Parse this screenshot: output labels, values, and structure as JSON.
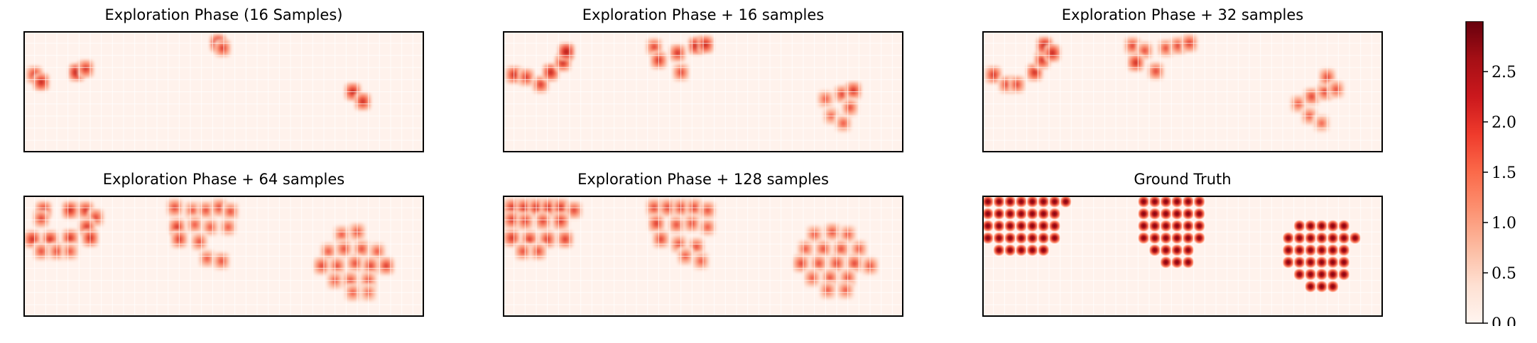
{
  "colormap": {
    "name": "Reds",
    "stops": [
      "#fff5f0",
      "#fee0d2",
      "#fcbba1",
      "#fc9272",
      "#fb6a4a",
      "#ef3b2c",
      "#cb181d",
      "#a50f15",
      "#67000d"
    ],
    "grid_color": "#ffffff",
    "frame_color": "#000000"
  },
  "colorbar": {
    "range": [
      0,
      3
    ],
    "ticks": [
      0.0,
      0.5,
      1.0,
      1.5,
      2.0,
      2.5
    ],
    "tick_labels": [
      "0.0",
      "0.5",
      "1.0",
      "1.5",
      "2.0",
      "2.5"
    ]
  },
  "chart_data": [
    {
      "type": "heatmap",
      "title": "Exploration Phase (16 Samples)",
      "grid": [
        36,
        10
      ],
      "background_value": 0.05,
      "blobs": [
        {
          "x": 1.0,
          "y": 3.6,
          "v": 1.4
        },
        {
          "x": 1.6,
          "y": 4.2,
          "v": 1.6
        },
        {
          "x": 4.8,
          "y": 3.4,
          "v": 1.8
        },
        {
          "x": 5.6,
          "y": 3.1,
          "v": 1.4
        },
        {
          "x": 17.5,
          "y": 1.0,
          "v": 1.8
        },
        {
          "x": 17.9,
          "y": 1.4,
          "v": 1.3
        },
        {
          "x": 29.6,
          "y": 5.0,
          "v": 1.6
        },
        {
          "x": 30.5,
          "y": 5.8,
          "v": 1.5
        }
      ]
    },
    {
      "type": "heatmap",
      "title": "Exploration Phase + 16 samples",
      "grid": [
        36,
        10
      ],
      "background_value": 0.05,
      "blobs": [
        {
          "x": 1.0,
          "y": 3.6,
          "v": 1.5
        },
        {
          "x": 2.1,
          "y": 3.8,
          "v": 1.3
        },
        {
          "x": 3.4,
          "y": 4.4,
          "v": 1.3
        },
        {
          "x": 4.3,
          "y": 3.4,
          "v": 1.6
        },
        {
          "x": 5.4,
          "y": 2.6,
          "v": 1.5
        },
        {
          "x": 5.7,
          "y": 1.7,
          "v": 1.8
        },
        {
          "x": 13.6,
          "y": 1.3,
          "v": 1.2
        },
        {
          "x": 14.0,
          "y": 2.4,
          "v": 1.4
        },
        {
          "x": 15.7,
          "y": 1.8,
          "v": 1.4
        },
        {
          "x": 16.0,
          "y": 3.4,
          "v": 1.2
        },
        {
          "x": 17.4,
          "y": 1.2,
          "v": 1.7
        },
        {
          "x": 18.2,
          "y": 1.1,
          "v": 1.6
        },
        {
          "x": 29.0,
          "y": 5.6,
          "v": 1.0
        },
        {
          "x": 30.5,
          "y": 5.2,
          "v": 1.2
        },
        {
          "x": 31.5,
          "y": 4.9,
          "v": 1.4
        },
        {
          "x": 29.5,
          "y": 7.0,
          "v": 0.9
        },
        {
          "x": 30.6,
          "y": 7.6,
          "v": 1.0
        },
        {
          "x": 31.2,
          "y": 6.3,
          "v": 1.1
        }
      ]
    },
    {
      "type": "heatmap",
      "title": "Exploration Phase + 32 samples",
      "grid": [
        36,
        10
      ],
      "background_value": 0.05,
      "blobs": [
        {
          "x": 1.0,
          "y": 3.6,
          "v": 1.4
        },
        {
          "x": 2.2,
          "y": 4.4,
          "v": 1.2
        },
        {
          "x": 3.1,
          "y": 4.4,
          "v": 1.2
        },
        {
          "x": 4.7,
          "y": 3.4,
          "v": 1.5
        },
        {
          "x": 5.4,
          "y": 2.4,
          "v": 1.4
        },
        {
          "x": 5.6,
          "y": 1.2,
          "v": 1.7
        },
        {
          "x": 6.3,
          "y": 1.8,
          "v": 1.6
        },
        {
          "x": 13.5,
          "y": 1.2,
          "v": 1.2
        },
        {
          "x": 14.6,
          "y": 1.6,
          "v": 1.1
        },
        {
          "x": 13.8,
          "y": 2.6,
          "v": 1.5
        },
        {
          "x": 15.6,
          "y": 3.3,
          "v": 1.2
        },
        {
          "x": 16.5,
          "y": 1.4,
          "v": 1.1
        },
        {
          "x": 17.6,
          "y": 1.2,
          "v": 1.2
        },
        {
          "x": 18.6,
          "y": 1.0,
          "v": 1.3
        },
        {
          "x": 28.4,
          "y": 6.0,
          "v": 1.0
        },
        {
          "x": 29.6,
          "y": 5.4,
          "v": 1.2
        },
        {
          "x": 30.8,
          "y": 5.0,
          "v": 1.2
        },
        {
          "x": 31.0,
          "y": 3.8,
          "v": 1.2
        },
        {
          "x": 31.8,
          "y": 4.8,
          "v": 1.1
        },
        {
          "x": 29.4,
          "y": 7.0,
          "v": 1.0
        },
        {
          "x": 30.5,
          "y": 7.6,
          "v": 0.9
        }
      ]
    },
    {
      "type": "heatmap",
      "title": "Exploration Phase + 64 samples",
      "grid": [
        36,
        10
      ],
      "background_value": 0.05,
      "blobs": [
        {
          "x": 1.8,
          "y": 1.2,
          "v": 1.5
        },
        {
          "x": 1.6,
          "y": 1.9,
          "v": 1.2
        },
        {
          "x": 4.2,
          "y": 1.2,
          "v": 1.5
        },
        {
          "x": 5.6,
          "y": 1.2,
          "v": 1.4
        },
        {
          "x": 6.5,
          "y": 1.8,
          "v": 1.2
        },
        {
          "x": 5.7,
          "y": 2.6,
          "v": 1.4
        },
        {
          "x": 0.8,
          "y": 3.6,
          "v": 1.5
        },
        {
          "x": 2.4,
          "y": 3.6,
          "v": 1.4
        },
        {
          "x": 4.2,
          "y": 3.5,
          "v": 1.4
        },
        {
          "x": 6.0,
          "y": 3.5,
          "v": 1.5
        },
        {
          "x": 1.6,
          "y": 4.6,
          "v": 1.1
        },
        {
          "x": 3.0,
          "y": 4.6,
          "v": 1.1
        },
        {
          "x": 4.2,
          "y": 4.6,
          "v": 1.0
        },
        {
          "x": 13.6,
          "y": 1.0,
          "v": 1.2
        },
        {
          "x": 15.2,
          "y": 1.2,
          "v": 1.0
        },
        {
          "x": 16.4,
          "y": 1.2,
          "v": 1.1
        },
        {
          "x": 17.6,
          "y": 1.0,
          "v": 1.2
        },
        {
          "x": 18.6,
          "y": 1.3,
          "v": 1.1
        },
        {
          "x": 13.8,
          "y": 2.6,
          "v": 1.4
        },
        {
          "x": 15.4,
          "y": 2.4,
          "v": 1.0
        },
        {
          "x": 16.8,
          "y": 2.6,
          "v": 1.0
        },
        {
          "x": 18.4,
          "y": 2.6,
          "v": 1.0
        },
        {
          "x": 14.0,
          "y": 3.6,
          "v": 1.3
        },
        {
          "x": 15.8,
          "y": 3.8,
          "v": 1.1
        },
        {
          "x": 16.5,
          "y": 5.2,
          "v": 1.0
        },
        {
          "x": 17.8,
          "y": 5.4,
          "v": 1.1
        },
        {
          "x": 28.6,
          "y": 3.2,
          "v": 1.0
        },
        {
          "x": 30.0,
          "y": 3.0,
          "v": 1.1
        },
        {
          "x": 27.4,
          "y": 4.6,
          "v": 1.0
        },
        {
          "x": 28.8,
          "y": 4.4,
          "v": 1.1
        },
        {
          "x": 30.4,
          "y": 4.4,
          "v": 1.1
        },
        {
          "x": 31.8,
          "y": 4.6,
          "v": 1.0
        },
        {
          "x": 26.8,
          "y": 5.8,
          "v": 1.2
        },
        {
          "x": 28.2,
          "y": 5.8,
          "v": 1.1
        },
        {
          "x": 29.8,
          "y": 5.6,
          "v": 1.1
        },
        {
          "x": 31.2,
          "y": 5.8,
          "v": 1.2
        },
        {
          "x": 32.6,
          "y": 5.8,
          "v": 1.3
        },
        {
          "x": 28.0,
          "y": 7.0,
          "v": 1.0
        },
        {
          "x": 29.4,
          "y": 7.0,
          "v": 1.1
        },
        {
          "x": 31.0,
          "y": 7.0,
          "v": 1.1
        },
        {
          "x": 29.6,
          "y": 8.0,
          "v": 1.0
        },
        {
          "x": 31.0,
          "y": 8.0,
          "v": 0.9
        }
      ]
    },
    {
      "type": "heatmap",
      "title": "Exploration Phase + 128 samples",
      "grid": [
        36,
        10
      ],
      "background_value": 0.05,
      "blobs": [
        {
          "x": 0.8,
          "y": 1.0,
          "v": 1.4
        },
        {
          "x": 1.9,
          "y": 1.0,
          "v": 1.4
        },
        {
          "x": 3.0,
          "y": 1.0,
          "v": 1.4
        },
        {
          "x": 4.1,
          "y": 1.0,
          "v": 1.4
        },
        {
          "x": 5.2,
          "y": 1.0,
          "v": 1.4
        },
        {
          "x": 6.4,
          "y": 1.2,
          "v": 1.2
        },
        {
          "x": 0.8,
          "y": 2.0,
          "v": 1.3
        },
        {
          "x": 2.0,
          "y": 2.1,
          "v": 1.2
        },
        {
          "x": 3.6,
          "y": 2.1,
          "v": 1.2
        },
        {
          "x": 5.2,
          "y": 2.1,
          "v": 1.3
        },
        {
          "x": 0.8,
          "y": 3.5,
          "v": 1.4
        },
        {
          "x": 2.4,
          "y": 3.6,
          "v": 1.3
        },
        {
          "x": 4.0,
          "y": 3.6,
          "v": 1.3
        },
        {
          "x": 5.6,
          "y": 3.6,
          "v": 1.3
        },
        {
          "x": 1.8,
          "y": 4.6,
          "v": 1.1
        },
        {
          "x": 3.2,
          "y": 4.6,
          "v": 1.1
        },
        {
          "x": 13.6,
          "y": 1.0,
          "v": 1.2
        },
        {
          "x": 14.8,
          "y": 1.0,
          "v": 1.2
        },
        {
          "x": 16.0,
          "y": 1.0,
          "v": 1.2
        },
        {
          "x": 17.2,
          "y": 1.0,
          "v": 1.2
        },
        {
          "x": 18.4,
          "y": 1.2,
          "v": 1.1
        },
        {
          "x": 13.8,
          "y": 2.3,
          "v": 1.3
        },
        {
          "x": 15.6,
          "y": 2.4,
          "v": 1.1
        },
        {
          "x": 17.0,
          "y": 2.3,
          "v": 1.1
        },
        {
          "x": 18.4,
          "y": 2.6,
          "v": 1.0
        },
        {
          "x": 14.2,
          "y": 3.6,
          "v": 1.2
        },
        {
          "x": 15.8,
          "y": 4.0,
          "v": 1.1
        },
        {
          "x": 17.4,
          "y": 4.2,
          "v": 1.1
        },
        {
          "x": 16.4,
          "y": 5.0,
          "v": 1.0
        },
        {
          "x": 17.8,
          "y": 5.4,
          "v": 1.0
        },
        {
          "x": 28.0,
          "y": 3.2,
          "v": 1.0
        },
        {
          "x": 29.6,
          "y": 3.0,
          "v": 1.1
        },
        {
          "x": 31.0,
          "y": 3.2,
          "v": 1.0
        },
        {
          "x": 27.2,
          "y": 4.4,
          "v": 1.0
        },
        {
          "x": 28.8,
          "y": 4.4,
          "v": 1.1
        },
        {
          "x": 30.4,
          "y": 4.4,
          "v": 1.1
        },
        {
          "x": 32.0,
          "y": 4.4,
          "v": 1.0
        },
        {
          "x": 26.8,
          "y": 5.6,
          "v": 1.2
        },
        {
          "x": 28.4,
          "y": 5.6,
          "v": 1.1
        },
        {
          "x": 30.0,
          "y": 5.6,
          "v": 1.2
        },
        {
          "x": 31.6,
          "y": 5.6,
          "v": 1.2
        },
        {
          "x": 33.0,
          "y": 5.8,
          "v": 1.1
        },
        {
          "x": 27.8,
          "y": 6.8,
          "v": 1.0
        },
        {
          "x": 29.4,
          "y": 6.8,
          "v": 1.1
        },
        {
          "x": 31.0,
          "y": 6.8,
          "v": 1.1
        },
        {
          "x": 29.2,
          "y": 7.8,
          "v": 1.0
        },
        {
          "x": 30.8,
          "y": 7.8,
          "v": 1.0
        }
      ]
    },
    {
      "type": "heatmap",
      "title": "Ground Truth",
      "grid": [
        36,
        10
      ],
      "background_value": 0.05,
      "peak_value": 2.5,
      "sources": [
        {
          "x": 0.5,
          "y": 0.5
        },
        {
          "x": 1.5,
          "y": 0.5
        },
        {
          "x": 2.5,
          "y": 0.5
        },
        {
          "x": 3.5,
          "y": 0.5
        },
        {
          "x": 4.5,
          "y": 0.5
        },
        {
          "x": 5.5,
          "y": 0.5
        },
        {
          "x": 6.5,
          "y": 0.5
        },
        {
          "x": 7.5,
          "y": 0.5
        },
        {
          "x": 0.5,
          "y": 1.5
        },
        {
          "x": 1.5,
          "y": 1.5
        },
        {
          "x": 2.5,
          "y": 1.5
        },
        {
          "x": 3.5,
          "y": 1.5
        },
        {
          "x": 4.5,
          "y": 1.5
        },
        {
          "x": 5.5,
          "y": 1.5
        },
        {
          "x": 6.5,
          "y": 1.5
        },
        {
          "x": 0.5,
          "y": 2.5
        },
        {
          "x": 1.5,
          "y": 2.5
        },
        {
          "x": 2.5,
          "y": 2.5
        },
        {
          "x": 3.5,
          "y": 2.5
        },
        {
          "x": 4.5,
          "y": 2.5
        },
        {
          "x": 5.5,
          "y": 2.5
        },
        {
          "x": 6.5,
          "y": 2.5
        },
        {
          "x": 0.5,
          "y": 3.5
        },
        {
          "x": 1.5,
          "y": 3.5
        },
        {
          "x": 2.5,
          "y": 3.5
        },
        {
          "x": 3.5,
          "y": 3.5
        },
        {
          "x": 4.5,
          "y": 3.5
        },
        {
          "x": 5.5,
          "y": 3.5
        },
        {
          "x": 6.5,
          "y": 3.5
        },
        {
          "x": 1.5,
          "y": 4.5
        },
        {
          "x": 2.5,
          "y": 4.5
        },
        {
          "x": 3.5,
          "y": 4.5
        },
        {
          "x": 4.5,
          "y": 4.5
        },
        {
          "x": 5.5,
          "y": 4.5
        },
        {
          "x": 14.5,
          "y": 0.5
        },
        {
          "x": 15.5,
          "y": 0.5
        },
        {
          "x": 16.5,
          "y": 0.5
        },
        {
          "x": 17.5,
          "y": 0.5
        },
        {
          "x": 18.5,
          "y": 0.5
        },
        {
          "x": 19.5,
          "y": 0.5
        },
        {
          "x": 14.5,
          "y": 1.5
        },
        {
          "x": 15.5,
          "y": 1.5
        },
        {
          "x": 16.5,
          "y": 1.5
        },
        {
          "x": 17.5,
          "y": 1.5
        },
        {
          "x": 18.5,
          "y": 1.5
        },
        {
          "x": 19.5,
          "y": 1.5
        },
        {
          "x": 14.5,
          "y": 2.5
        },
        {
          "x": 15.5,
          "y": 2.5
        },
        {
          "x": 16.5,
          "y": 2.5
        },
        {
          "x": 17.5,
          "y": 2.5
        },
        {
          "x": 18.5,
          "y": 2.5
        },
        {
          "x": 19.5,
          "y": 2.5
        },
        {
          "x": 14.5,
          "y": 3.5
        },
        {
          "x": 15.5,
          "y": 3.5
        },
        {
          "x": 16.5,
          "y": 3.5
        },
        {
          "x": 17.5,
          "y": 3.5
        },
        {
          "x": 18.5,
          "y": 3.5
        },
        {
          "x": 19.5,
          "y": 3.5
        },
        {
          "x": 15.5,
          "y": 4.5
        },
        {
          "x": 16.5,
          "y": 4.5
        },
        {
          "x": 17.5,
          "y": 4.5
        },
        {
          "x": 18.5,
          "y": 4.5
        },
        {
          "x": 16.5,
          "y": 5.5
        },
        {
          "x": 17.5,
          "y": 5.5
        },
        {
          "x": 18.5,
          "y": 5.5
        },
        {
          "x": 28.5,
          "y": 2.5
        },
        {
          "x": 29.5,
          "y": 2.5
        },
        {
          "x": 30.5,
          "y": 2.5
        },
        {
          "x": 31.5,
          "y": 2.5
        },
        {
          "x": 32.5,
          "y": 2.5
        },
        {
          "x": 27.5,
          "y": 3.5
        },
        {
          "x": 28.5,
          "y": 3.5
        },
        {
          "x": 29.5,
          "y": 3.5
        },
        {
          "x": 30.5,
          "y": 3.5
        },
        {
          "x": 31.5,
          "y": 3.5
        },
        {
          "x": 32.5,
          "y": 3.5
        },
        {
          "x": 33.5,
          "y": 3.5
        },
        {
          "x": 27.5,
          "y": 4.5
        },
        {
          "x": 28.5,
          "y": 4.5
        },
        {
          "x": 29.5,
          "y": 4.5
        },
        {
          "x": 30.5,
          "y": 4.5
        },
        {
          "x": 31.5,
          "y": 4.5
        },
        {
          "x": 32.5,
          "y": 4.5
        },
        {
          "x": 27.5,
          "y": 5.5
        },
        {
          "x": 28.5,
          "y": 5.5
        },
        {
          "x": 29.5,
          "y": 5.5
        },
        {
          "x": 30.5,
          "y": 5.5
        },
        {
          "x": 31.5,
          "y": 5.5
        },
        {
          "x": 32.5,
          "y": 5.5
        },
        {
          "x": 28.5,
          "y": 6.5
        },
        {
          "x": 29.5,
          "y": 6.5
        },
        {
          "x": 30.5,
          "y": 6.5
        },
        {
          "x": 31.5,
          "y": 6.5
        },
        {
          "x": 32.5,
          "y": 6.5
        },
        {
          "x": 29.5,
          "y": 7.5
        },
        {
          "x": 30.5,
          "y": 7.5
        },
        {
          "x": 31.5,
          "y": 7.5
        }
      ]
    }
  ]
}
